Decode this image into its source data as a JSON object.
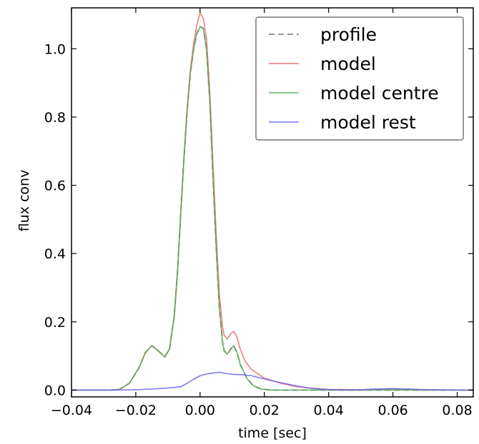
{
  "chart_data": {
    "type": "line",
    "xlabel": "time [sec]",
    "ylabel": "flux conv",
    "xlim": [
      -0.04,
      0.085
    ],
    "ylim": [
      -0.02,
      1.12
    ],
    "x_ticks": [
      -0.04,
      -0.02,
      0.0,
      0.02,
      0.04,
      0.06,
      0.08
    ],
    "x_tick_labels": [
      "−0.04",
      "−0.02",
      "0.00",
      "0.02",
      "0.04",
      "0.06",
      "0.08"
    ],
    "y_ticks": [
      0.0,
      0.2,
      0.4,
      0.6,
      0.8,
      1.0
    ],
    "y_tick_labels": [
      "0.0",
      "0.2",
      "0.4",
      "0.6",
      "0.8",
      "1.0"
    ],
    "grid": false,
    "legend_position": "top-right",
    "series": [
      {
        "name": "profile",
        "color": "#888888",
        "style": "dashed",
        "points": [
          [
            -0.04,
            0
          ],
          [
            -0.028,
            0
          ],
          [
            -0.025,
            0.002
          ],
          [
            -0.022,
            0.02
          ],
          [
            -0.019,
            0.065
          ],
          [
            -0.017,
            0.11
          ],
          [
            -0.015,
            0.13
          ],
          [
            -0.013,
            0.115
          ],
          [
            -0.011,
            0.097
          ],
          [
            -0.0095,
            0.12
          ],
          [
            -0.008,
            0.22
          ],
          [
            -0.007,
            0.35
          ],
          [
            -0.006,
            0.52
          ],
          [
            -0.005,
            0.68
          ],
          [
            -0.004,
            0.82
          ],
          [
            -0.003,
            0.93
          ],
          [
            -0.002,
            1.0
          ],
          [
            -0.001,
            1.045
          ],
          [
            0.0,
            1.065
          ],
          [
            0.001,
            1.06
          ],
          [
            0.002,
            1.0
          ],
          [
            0.003,
            0.85
          ],
          [
            0.004,
            0.63
          ],
          [
            0.005,
            0.42
          ],
          [
            0.006,
            0.24
          ],
          [
            0.007,
            0.14
          ],
          [
            0.0075,
            0.115
          ],
          [
            0.0085,
            0.105
          ],
          [
            0.0095,
            0.12
          ],
          [
            0.0105,
            0.13
          ],
          [
            0.0115,
            0.11
          ],
          [
            0.0125,
            0.075
          ],
          [
            0.0145,
            0.035
          ],
          [
            0.0165,
            0.013
          ],
          [
            0.019,
            0.003
          ],
          [
            0.022,
            0.0
          ],
          [
            0.085,
            0.0
          ]
        ]
      },
      {
        "name": "model",
        "color": "#ee6666",
        "style": "solid",
        "points": [
          [
            -0.04,
            0
          ],
          [
            -0.028,
            0
          ],
          [
            -0.025,
            0.002
          ],
          [
            -0.022,
            0.02
          ],
          [
            -0.019,
            0.065
          ],
          [
            -0.017,
            0.11
          ],
          [
            -0.015,
            0.13
          ],
          [
            -0.013,
            0.115
          ],
          [
            -0.011,
            0.097
          ],
          [
            -0.0095,
            0.12
          ],
          [
            -0.008,
            0.22
          ],
          [
            -0.007,
            0.35
          ],
          [
            -0.006,
            0.52
          ],
          [
            -0.005,
            0.685
          ],
          [
            -0.004,
            0.83
          ],
          [
            -0.003,
            0.94
          ],
          [
            -0.002,
            1.015
          ],
          [
            -0.001,
            1.07
          ],
          [
            0.0,
            1.105
          ],
          [
            0.001,
            1.09
          ],
          [
            0.002,
            1.03
          ],
          [
            0.003,
            0.88
          ],
          [
            0.004,
            0.67
          ],
          [
            0.005,
            0.46
          ],
          [
            0.006,
            0.28
          ],
          [
            0.007,
            0.185
          ],
          [
            0.0075,
            0.16
          ],
          [
            0.0085,
            0.15
          ],
          [
            0.0095,
            0.165
          ],
          [
            0.0105,
            0.172
          ],
          [
            0.0115,
            0.155
          ],
          [
            0.0125,
            0.12
          ],
          [
            0.014,
            0.085
          ],
          [
            0.016,
            0.06
          ],
          [
            0.02,
            0.035
          ],
          [
            0.025,
            0.02
          ],
          [
            0.03,
            0.01
          ],
          [
            0.035,
            0.005
          ],
          [
            0.04,
            0.002
          ],
          [
            0.05,
            0.001
          ],
          [
            0.055,
            0.003
          ],
          [
            0.06,
            0.004
          ],
          [
            0.065,
            0.003
          ],
          [
            0.07,
            0.001
          ],
          [
            0.085,
            0.0
          ]
        ]
      },
      {
        "name": "model centre",
        "color": "#55aa55",
        "style": "solid",
        "points": [
          [
            -0.04,
            0
          ],
          [
            -0.028,
            0
          ],
          [
            -0.025,
            0.002
          ],
          [
            -0.022,
            0.02
          ],
          [
            -0.019,
            0.065
          ],
          [
            -0.017,
            0.11
          ],
          [
            -0.015,
            0.13
          ],
          [
            -0.013,
            0.115
          ],
          [
            -0.011,
            0.097
          ],
          [
            -0.0095,
            0.12
          ],
          [
            -0.008,
            0.22
          ],
          [
            -0.007,
            0.35
          ],
          [
            -0.006,
            0.52
          ],
          [
            -0.005,
            0.68
          ],
          [
            -0.004,
            0.82
          ],
          [
            -0.003,
            0.93
          ],
          [
            -0.002,
            1.0
          ],
          [
            -0.001,
            1.045
          ],
          [
            0.0,
            1.065
          ],
          [
            0.001,
            1.06
          ],
          [
            0.002,
            1.0
          ],
          [
            0.003,
            0.85
          ],
          [
            0.004,
            0.63
          ],
          [
            0.005,
            0.42
          ],
          [
            0.006,
            0.24
          ],
          [
            0.007,
            0.14
          ],
          [
            0.0075,
            0.115
          ],
          [
            0.0085,
            0.105
          ],
          [
            0.0095,
            0.12
          ],
          [
            0.0105,
            0.13
          ],
          [
            0.0115,
            0.11
          ],
          [
            0.0125,
            0.075
          ],
          [
            0.0145,
            0.035
          ],
          [
            0.0165,
            0.013
          ],
          [
            0.019,
            0.003
          ],
          [
            0.022,
            0.0
          ],
          [
            0.085,
            0.0
          ]
        ]
      },
      {
        "name": "model rest",
        "color": "#6666ee",
        "style": "solid",
        "points": [
          [
            -0.04,
            0
          ],
          [
            -0.025,
            0.0
          ],
          [
            -0.02,
            0.001
          ],
          [
            -0.015,
            0.003
          ],
          [
            -0.01,
            0.006
          ],
          [
            -0.006,
            0.01
          ],
          [
            -0.004,
            0.02
          ],
          [
            -0.002,
            0.032
          ],
          [
            0.0,
            0.042
          ],
          [
            0.002,
            0.047
          ],
          [
            0.004,
            0.05
          ],
          [
            0.006,
            0.052
          ],
          [
            0.008,
            0.049
          ],
          [
            0.01,
            0.046
          ],
          [
            0.013,
            0.045
          ],
          [
            0.016,
            0.042
          ],
          [
            0.019,
            0.035
          ],
          [
            0.022,
            0.028
          ],
          [
            0.026,
            0.02
          ],
          [
            0.03,
            0.012
          ],
          [
            0.034,
            0.006
          ],
          [
            0.038,
            0.002
          ],
          [
            0.045,
            0.0
          ],
          [
            0.05,
            0.001
          ],
          [
            0.055,
            0.003
          ],
          [
            0.06,
            0.004
          ],
          [
            0.065,
            0.003
          ],
          [
            0.07,
            0.001
          ],
          [
            0.085,
            0.0
          ]
        ]
      }
    ]
  }
}
